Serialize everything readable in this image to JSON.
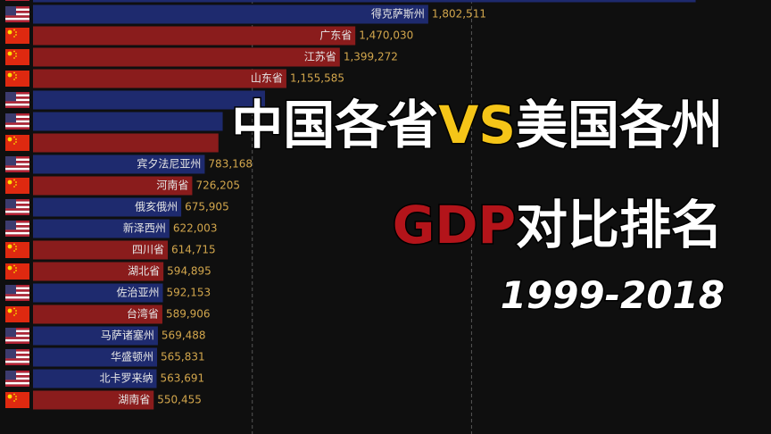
{
  "chart_data": {
    "type": "bar",
    "orientation": "horizontal",
    "categories": [
      null,
      "得克萨斯州",
      "广东省",
      "江苏省",
      "山东省",
      null,
      null,
      null,
      "宾夕法尼亚州",
      "河南省",
      "俄亥俄州",
      "新泽西州",
      "四川省",
      "湖北省",
      "佐治亚州",
      "台湾省",
      "马萨诸塞州",
      "华盛顿州",
      "北卡罗来纳",
      "湖南省"
    ],
    "values": [
      3022000,
      1802511,
      1470030,
      1399272,
      1155585,
      1058000,
      865100,
      845590,
      783168,
      726205,
      675905,
      622003,
      614715,
      594895,
      592153,
      589906,
      569488,
      565831,
      563691,
      550455
    ],
    "value_labels": [
      null,
      "1,802,511",
      "1,470,030",
      "1,399,272",
      "1,155,585",
      null,
      null,
      null,
      "783,168",
      "726,205",
      "675,905",
      "622,003",
      "614,715",
      "594,895",
      "592,153",
      "589,906",
      "569,488",
      "565,831",
      "563,691",
      "550,455"
    ],
    "flags": [
      "us",
      "us",
      "cn",
      "cn",
      "cn",
      "us",
      "us",
      "cn",
      "us",
      "cn",
      "us",
      "us",
      "cn",
      "cn",
      "us",
      "cn",
      "us",
      "us",
      "us",
      "cn"
    ],
    "colors": [
      "#1e2a6e",
      "#1e2a6e",
      "#8a1c1c",
      "#8a1c1c",
      "#8a1c1c",
      "#1e2a6e",
      "#1e2a6e",
      "#8a1c1c",
      "#1e2a6e",
      "#8a1c1c",
      "#1e2a6e",
      "#1e2a6e",
      "#8a1c1c",
      "#8a1c1c",
      "#1e2a6e",
      "#8a1c1c",
      "#1e2a6e",
      "#1e2a6e",
      "#1e2a6e",
      "#8a1c1c"
    ],
    "xlim": [
      0,
      3500000
    ],
    "xticks": [
      1000000,
      2000000
    ],
    "grid": true,
    "title_parts": {
      "left": "中国各省",
      "vs": "VS",
      "right": "美国各州",
      "gdp": "GDP",
      "rest": "对比排名",
      "years": "1999-2018"
    }
  }
}
